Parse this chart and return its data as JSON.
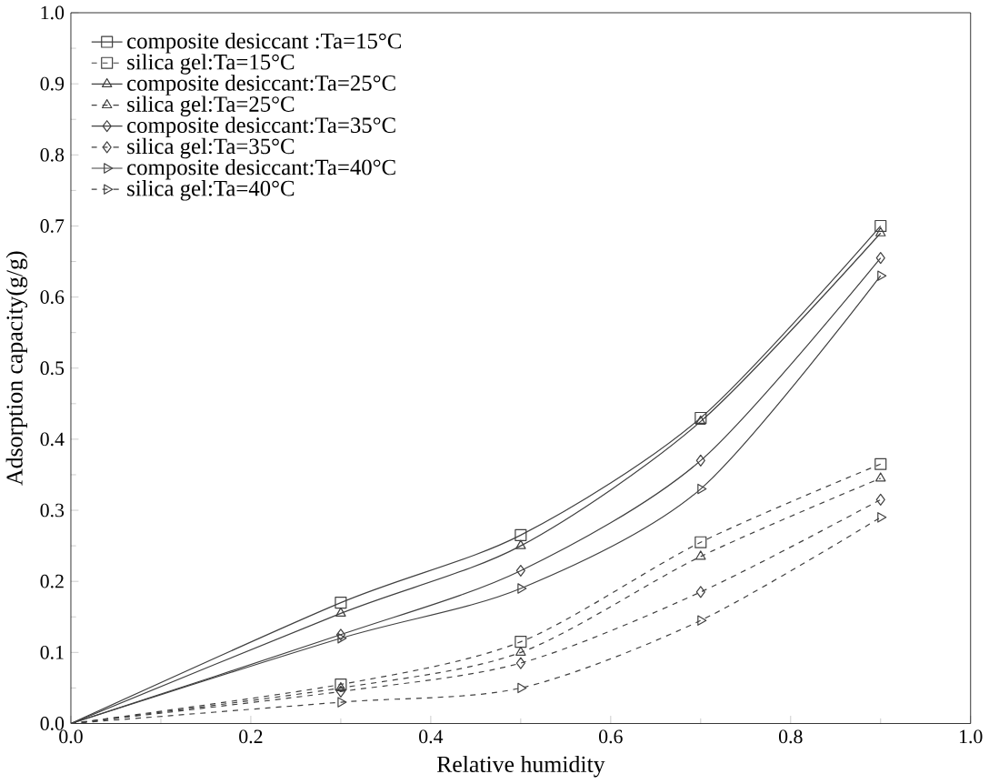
{
  "chart_data": {
    "type": "line",
    "xlabel": "Relative humidity",
    "ylabel": "Adsorption capacity(g/g)",
    "x": [
      0,
      0.3,
      0.5,
      0.7,
      0.9
    ],
    "series": [
      {
        "name": "composite desiccant :Ta=15°C",
        "color": "#404040",
        "marker": "square",
        "line_style": "solid",
        "values": [
          0,
          0.17,
          0.265,
          0.43,
          0.7
        ]
      },
      {
        "name": "silica gel:Ta=15°C",
        "color": "#404040",
        "marker": "square",
        "line_style": "dashed",
        "values": [
          0,
          0.055,
          0.115,
          0.255,
          0.365
        ]
      },
      {
        "name": "composite desiccant:Ta=25°C",
        "color": "#404040",
        "marker": "triangle",
        "line_style": "solid",
        "values": [
          0,
          0.155,
          0.25,
          0.425,
          0.69
        ]
      },
      {
        "name": "silica gel:Ta=25°C",
        "color": "#404040",
        "marker": "triangle",
        "line_style": "dashed",
        "values": [
          0,
          0.05,
          0.1,
          0.235,
          0.345
        ]
      },
      {
        "name": "composite desiccant:Ta=35°C",
        "color": "#404040",
        "marker": "diamond",
        "line_style": "solid",
        "values": [
          0,
          0.125,
          0.215,
          0.37,
          0.655
        ]
      },
      {
        "name": "silica gel:Ta=35°C",
        "color": "#404040",
        "marker": "diamond",
        "line_style": "dashed",
        "values": [
          0,
          0.045,
          0.085,
          0.185,
          0.315
        ]
      },
      {
        "name": "composite desiccant:Ta=40°C",
        "color": "#404040",
        "marker": "triangle-right",
        "line_style": "solid",
        "values": [
          0,
          0.12,
          0.19,
          0.33,
          0.63
        ]
      },
      {
        "name": "silica gel:Ta=40°C",
        "color": "#404040",
        "marker": "triangle-right",
        "line_style": "dashed",
        "values": [
          0,
          0.03,
          0.05,
          0.145,
          0.29
        ]
      }
    ],
    "xlim": [
      0,
      1.0
    ],
    "ylim": [
      0,
      1.0
    ],
    "xticks": [
      {
        "value": 0,
        "label": "0.0"
      },
      0.2,
      0.4,
      0.6,
      0.8,
      {
        "value": 1.0,
        "label": "1.0"
      }
    ],
    "yticks": [
      {
        "value": 0,
        "label": "0.0"
      },
      0.1,
      0.2,
      0.3,
      0.4,
      0.5,
      0.6,
      0.7,
      0.8,
      0.9,
      {
        "value": 1.0,
        "label": "1.0"
      }
    ],
    "grid": false,
    "legend": "top left"
  }
}
